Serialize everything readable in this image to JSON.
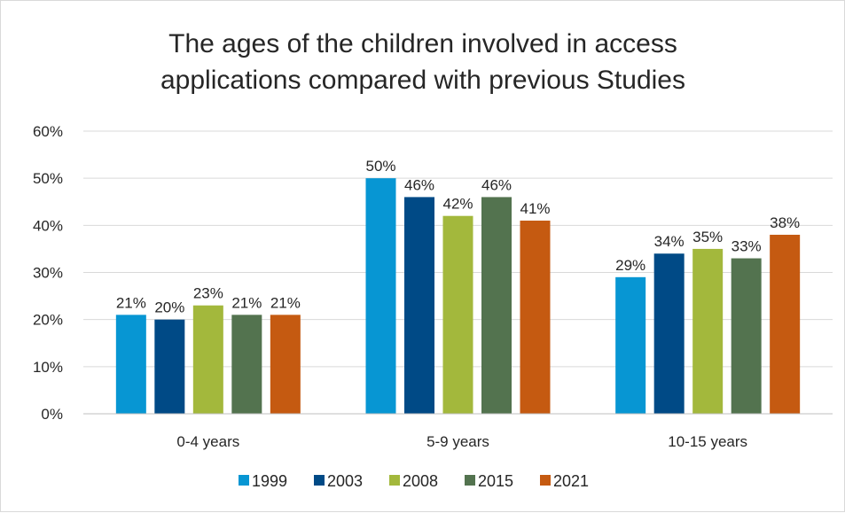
{
  "chart_data": {
    "type": "bar",
    "title_lines": [
      "The ages of the children involved in access",
      "applications compared with previous Studies"
    ],
    "categories": [
      "0-4 years",
      "5-9 years",
      "10-15 years"
    ],
    "series": [
      {
        "name": "1999",
        "color": "#0796d3",
        "values": [
          21,
          50,
          29
        ],
        "labels": [
          "21%",
          "50%",
          "29%"
        ]
      },
      {
        "name": "2003",
        "color": "#004a86",
        "values": [
          20,
          46,
          34
        ],
        "labels": [
          "20%",
          "46%",
          "34%"
        ]
      },
      {
        "name": "2008",
        "color": "#a3b83c",
        "values": [
          23,
          42,
          35
        ],
        "labels": [
          "23%",
          "42%",
          "35%"
        ]
      },
      {
        "name": "2015",
        "color": "#53734f",
        "values": [
          21,
          46,
          33
        ],
        "labels": [
          "21%",
          "46%",
          "33%"
        ]
      },
      {
        "name": "2021",
        "color": "#c55a11",
        "values": [
          21,
          41,
          38
        ],
        "labels": [
          "21%",
          "41%",
          "38%"
        ]
      }
    ],
    "ylim": [
      0,
      60
    ],
    "yticks": [
      {
        "value": 0,
        "label": "0%"
      },
      {
        "value": 10,
        "label": "10%"
      },
      {
        "value": 20,
        "label": "20%"
      },
      {
        "value": 30,
        "label": "30%"
      },
      {
        "value": 40,
        "label": "40%"
      },
      {
        "value": 50,
        "label": "50%"
      },
      {
        "value": 60,
        "label": "60%"
      }
    ],
    "xlabel": "",
    "ylabel": "",
    "grid": true,
    "legend_position": "bottom"
  }
}
